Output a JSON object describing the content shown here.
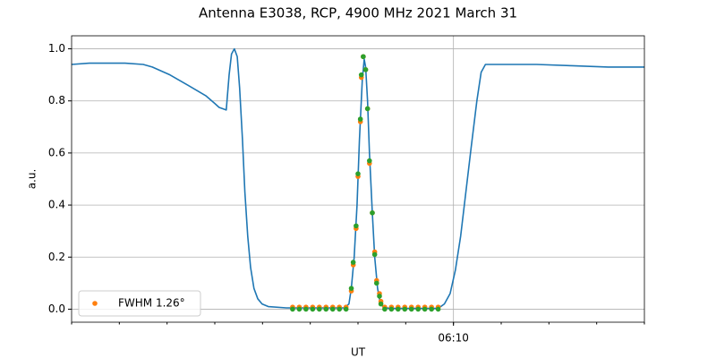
{
  "chart_data": {
    "type": "line",
    "title": "Antenna E3038, RCP, 4900 MHz 2021 March 31",
    "xlabel": "UT",
    "ylabel": "a.u.",
    "xlim": [
      362,
      374
    ],
    "xticks": [
      {
        "value": 370,
        "label": "06:10"
      }
    ],
    "xminor": [
      362,
      363,
      364,
      365,
      366,
      367,
      368,
      369,
      370,
      371,
      372,
      373,
      374
    ],
    "ylim": [
      -0.05,
      1.05
    ],
    "yticks": [
      {
        "value": 0,
        "label": "0.0"
      },
      0.2,
      0.4,
      0.6,
      0.8,
      {
        "value": 1,
        "label": "1.0"
      }
    ],
    "grid": true,
    "legend": "lower left",
    "series": [
      {
        "style": "line",
        "color": "#1f77b4",
        "x": [
          362.0,
          362.37,
          363.12,
          363.5,
          363.69,
          364.06,
          364.44,
          364.81,
          365.0,
          365.09,
          365.24,
          365.3,
          365.35,
          365.41,
          365.47,
          365.52,
          365.58,
          365.63,
          365.69,
          365.75,
          365.82,
          365.9,
          365.99,
          366.12,
          366.5,
          367.71,
          367.81,
          367.86,
          367.92,
          367.98,
          368.03,
          368.09,
          368.13,
          368.16,
          368.2,
          368.24,
          368.3,
          368.35,
          368.41,
          368.46,
          368.52,
          368.65,
          369.68,
          369.81,
          369.93,
          370.04,
          370.15,
          370.26,
          370.37,
          370.49,
          370.58,
          370.67,
          370.99,
          371.74,
          372.49,
          373.24,
          374.0
        ],
        "values": [
          0.94,
          0.945,
          0.945,
          0.94,
          0.93,
          0.9,
          0.86,
          0.82,
          0.79,
          0.775,
          0.765,
          0.9,
          0.98,
          1.0,
          0.97,
          0.85,
          0.65,
          0.45,
          0.28,
          0.16,
          0.08,
          0.04,
          0.02,
          0.01,
          0.005,
          0.005,
          0.02,
          0.08,
          0.2,
          0.4,
          0.65,
          0.88,
          0.96,
          0.93,
          0.8,
          0.6,
          0.37,
          0.2,
          0.08,
          0.03,
          0.01,
          0.003,
          0.003,
          0.02,
          0.06,
          0.15,
          0.28,
          0.45,
          0.62,
          0.8,
          0.91,
          0.94,
          0.94,
          0.94,
          0.935,
          0.93,
          0.93
        ]
      },
      {
        "style": "scatter",
        "name": "FWHM 1.26°",
        "color": "#ff7f0e",
        "x": [
          366.63,
          366.77,
          366.91,
          367.05,
          367.19,
          367.33,
          367.47,
          367.61,
          367.75,
          367.86,
          367.9,
          367.96,
          368.0,
          368.05,
          368.07,
          368.11,
          368.16,
          368.2,
          368.24,
          368.3,
          368.35,
          368.39,
          368.45,
          368.48,
          368.56,
          368.7,
          368.84,
          368.98,
          369.12,
          369.26,
          369.4,
          369.54,
          369.68
        ],
        "values": [
          0.008,
          0.008,
          0.008,
          0.008,
          0.008,
          0.008,
          0.008,
          0.008,
          0.008,
          0.07,
          0.17,
          0.31,
          0.51,
          0.72,
          0.89,
          0.97,
          0.92,
          0.77,
          0.56,
          0.37,
          0.22,
          0.11,
          0.06,
          0.03,
          0.008,
          0.008,
          0.008,
          0.008,
          0.008,
          0.008,
          0.008,
          0.008,
          0.008
        ]
      },
      {
        "style": "scatter",
        "color": "#2ca02c",
        "x": [
          366.63,
          366.77,
          366.91,
          367.05,
          367.19,
          367.33,
          367.47,
          367.61,
          367.75,
          367.86,
          367.9,
          367.96,
          368.0,
          368.05,
          368.07,
          368.11,
          368.16,
          368.2,
          368.24,
          368.3,
          368.35,
          368.39,
          368.45,
          368.48,
          368.56,
          368.7,
          368.84,
          368.98,
          369.12,
          369.26,
          369.4,
          369.54,
          369.68
        ],
        "values": [
          0,
          0,
          0,
          0,
          0,
          0,
          0,
          0,
          0,
          0.08,
          0.18,
          0.32,
          0.52,
          0.73,
          0.9,
          0.97,
          0.92,
          0.77,
          0.57,
          0.37,
          0.21,
          0.1,
          0.05,
          0.02,
          0,
          0,
          0,
          0,
          0,
          0,
          0,
          0,
          0
        ]
      }
    ]
  }
}
